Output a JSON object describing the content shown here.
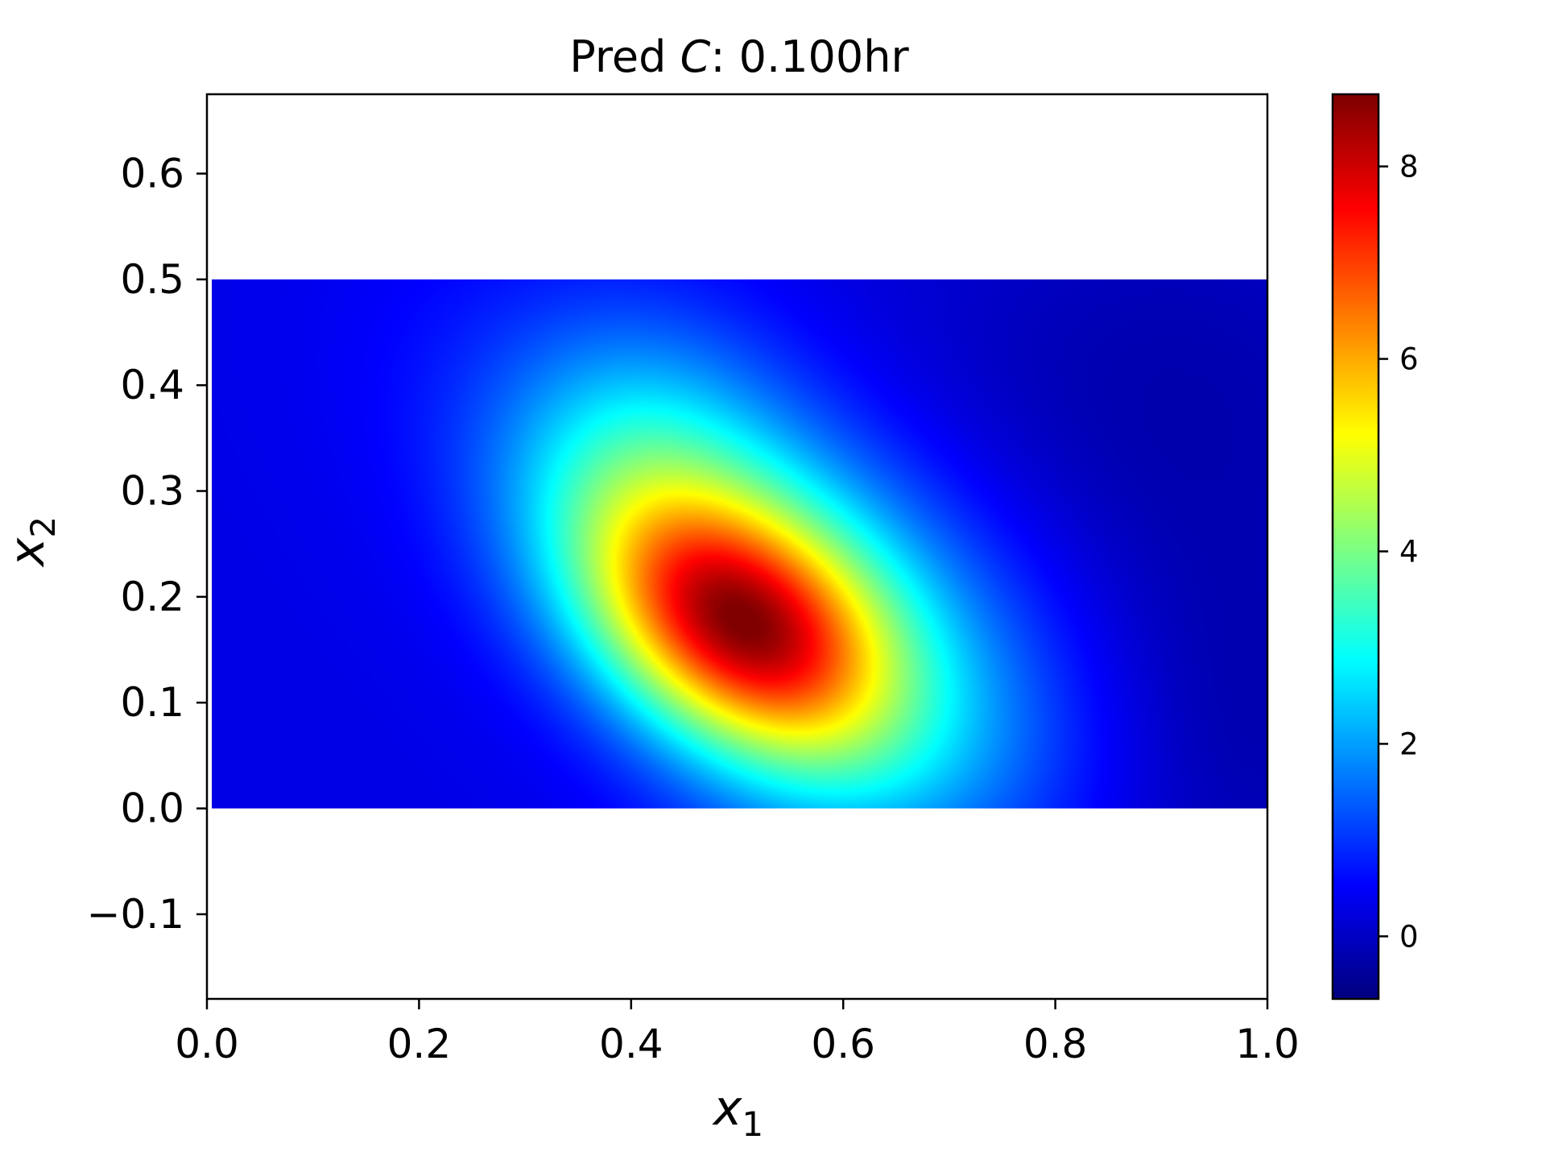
{
  "chart_data": {
    "type": "heatmap",
    "title_prefix": "Pred ",
    "title_var": "C",
    "title_suffix": ": 0.100hr",
    "xlabel_var": "x",
    "xlabel_sub": "1",
    "ylabel_var": "x",
    "ylabel_sub": "2",
    "xlim": [
      0.0,
      1.0
    ],
    "ylim": [
      -0.18,
      0.675
    ],
    "data_extent": {
      "x": [
        0.0,
        1.0
      ],
      "y": [
        0.0,
        0.5
      ]
    },
    "x_ticks": [
      0.0,
      0.2,
      0.4,
      0.6,
      0.8,
      1.0
    ],
    "x_tick_labels": [
      "0.0",
      "0.2",
      "0.4",
      "0.6",
      "0.8",
      "1.0"
    ],
    "y_ticks": [
      -0.1,
      0.0,
      0.1,
      0.2,
      0.3,
      0.4,
      0.5,
      0.6
    ],
    "y_tick_labels": [
      "−0.1",
      "0.0",
      "0.1",
      "0.2",
      "0.3",
      "0.4",
      "0.5",
      "0.6"
    ],
    "colormap": "jet",
    "colorbar": {
      "range": [
        -0.65,
        8.75
      ],
      "ticks": [
        0,
        2,
        4,
        6,
        8
      ],
      "tick_labels": [
        "0",
        "2",
        "4",
        "6",
        "8"
      ]
    },
    "field": {
      "background": 0.3,
      "peak": {
        "x": 0.49,
        "y": 0.17,
        "value": 8.6
      },
      "components": [
        {
          "x": 0.5,
          "y": 0.17,
          "amp": 6.6,
          "sx": 0.11,
          "sy": 0.075,
          "rot_deg": 33
        },
        {
          "x": 0.55,
          "y": 0.22,
          "amp": 2.1,
          "sx": 0.21,
          "sy": 0.105,
          "rot_deg": 35
        },
        {
          "x": 0.4,
          "y": 0.33,
          "amp": 1.2,
          "sx": 0.09,
          "sy": 0.09,
          "rot_deg": 0
        },
        {
          "x": 0.62,
          "y": 0.02,
          "amp": 0.7,
          "sx": 0.12,
          "sy": 0.08,
          "rot_deg": 0
        },
        {
          "x": 0.95,
          "y": 0.05,
          "amp": -0.6,
          "sx": 0.12,
          "sy": 0.15,
          "rot_deg": 0
        },
        {
          "x": 0.9,
          "y": 0.4,
          "amp": -0.5,
          "sx": 0.2,
          "sy": 0.15,
          "rot_deg": 0
        }
      ],
      "min_value": -0.6
    }
  }
}
